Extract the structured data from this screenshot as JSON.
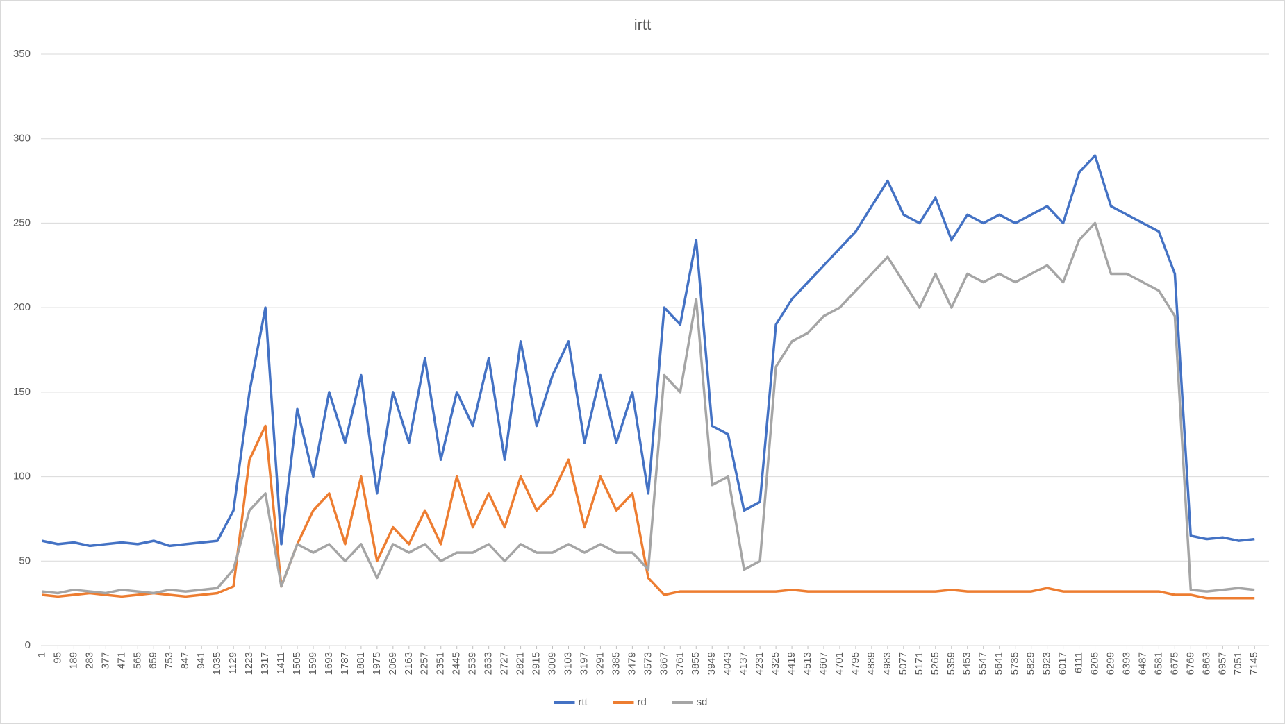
{
  "chart_data": {
    "type": "line",
    "title": "irtt",
    "x": [
      1,
      95,
      189,
      283,
      377,
      471,
      565,
      659,
      753,
      847,
      941,
      1035,
      1129,
      1223,
      1317,
      1411,
      1505,
      1599,
      1693,
      1787,
      1881,
      1975,
      2069,
      2163,
      2257,
      2351,
      2445,
      2539,
      2633,
      2727,
      2821,
      2915,
      3009,
      3103,
      3197,
      3291,
      3385,
      3479,
      3573,
      3667,
      3761,
      3855,
      3949,
      4043,
      4137,
      4231,
      4325,
      4419,
      4513,
      4607,
      4701,
      4795,
      4889,
      4983,
      5077,
      5171,
      5265,
      5359,
      5453,
      5547,
      5641,
      5735,
      5829,
      5923,
      6017,
      6111,
      6205,
      6299,
      6393,
      6487,
      6581,
      6675,
      6769,
      6863,
      6957,
      7051,
      7145
    ],
    "xticks": [
      1,
      95,
      189,
      283,
      377,
      471,
      565,
      659,
      753,
      847,
      941,
      1035,
      1129,
      1223,
      1317,
      1411,
      1505,
      1599,
      1693,
      1787,
      1881,
      1975,
      2069,
      2163,
      2257,
      2351,
      2445,
      2539,
      2633,
      2727,
      2821,
      2915,
      3009,
      3103,
      3197,
      3291,
      3385,
      3479,
      3573,
      3667,
      3761,
      3855,
      3949,
      4043,
      4137,
      4231,
      4325,
      4419,
      4513,
      4607,
      4701,
      4795,
      4889,
      4983,
      5077,
      5171,
      5265,
      5359,
      5453,
      5547,
      5641,
      5735,
      5829,
      5923,
      6017,
      6111,
      6205,
      6299,
      6393,
      6487,
      6581,
      6675,
      6769,
      6863,
      6957,
      7051,
      7145
    ],
    "xlim": [
      -5,
      7230
    ],
    "ylim": [
      0,
      350
    ],
    "yticks": [
      0,
      50,
      100,
      150,
      200,
      250,
      300,
      350
    ],
    "grid": true,
    "legend": "bottom",
    "series": [
      {
        "name": "rtt",
        "color": "#4472c4",
        "values": [
          62,
          60,
          61,
          59,
          60,
          61,
          60,
          62,
          59,
          60,
          61,
          62,
          80,
          150,
          200,
          60,
          140,
          100,
          150,
          120,
          160,
          90,
          150,
          120,
          170,
          110,
          150,
          130,
          170,
          110,
          180,
          130,
          160,
          180,
          120,
          160,
          120,
          150,
          90,
          200,
          190,
          240,
          130,
          125,
          80,
          85,
          190,
          205,
          215,
          225,
          235,
          245,
          260,
          275,
          255,
          250,
          265,
          240,
          255,
          250,
          255,
          250,
          255,
          260,
          250,
          280,
          290,
          260,
          255,
          250,
          245,
          220,
          65,
          63,
          64,
          62,
          63
        ]
      },
      {
        "name": "rd",
        "color": "#ed7d31",
        "values": [
          30,
          29,
          30,
          31,
          30,
          29,
          30,
          31,
          30,
          29,
          30,
          31,
          35,
          110,
          130,
          35,
          60,
          80,
          90,
          60,
          100,
          50,
          70,
          60,
          80,
          60,
          100,
          70,
          90,
          70,
          100,
          80,
          90,
          110,
          70,
          100,
          80,
          90,
          40,
          30,
          32,
          32,
          32,
          32,
          32,
          32,
          32,
          33,
          32,
          32,
          32,
          32,
          32,
          32,
          32,
          32,
          32,
          33,
          32,
          32,
          32,
          32,
          32,
          34,
          32,
          32,
          32,
          32,
          32,
          32,
          32,
          30,
          30,
          28,
          28,
          28,
          28
        ]
      },
      {
        "name": "sd",
        "color": "#a5a5a5",
        "values": [
          32,
          31,
          33,
          32,
          31,
          33,
          32,
          31,
          33,
          32,
          33,
          34,
          45,
          80,
          90,
          35,
          60,
          55,
          60,
          50,
          60,
          40,
          60,
          55,
          60,
          50,
          55,
          55,
          60,
          50,
          60,
          55,
          55,
          60,
          55,
          60,
          55,
          55,
          45,
          160,
          150,
          205,
          95,
          100,
          45,
          50,
          165,
          180,
          185,
          195,
          200,
          210,
          220,
          230,
          215,
          200,
          220,
          200,
          220,
          215,
          220,
          215,
          220,
          225,
          215,
          240,
          250,
          220,
          220,
          215,
          210,
          195,
          33,
          32,
          33,
          34,
          33
        ]
      }
    ]
  }
}
